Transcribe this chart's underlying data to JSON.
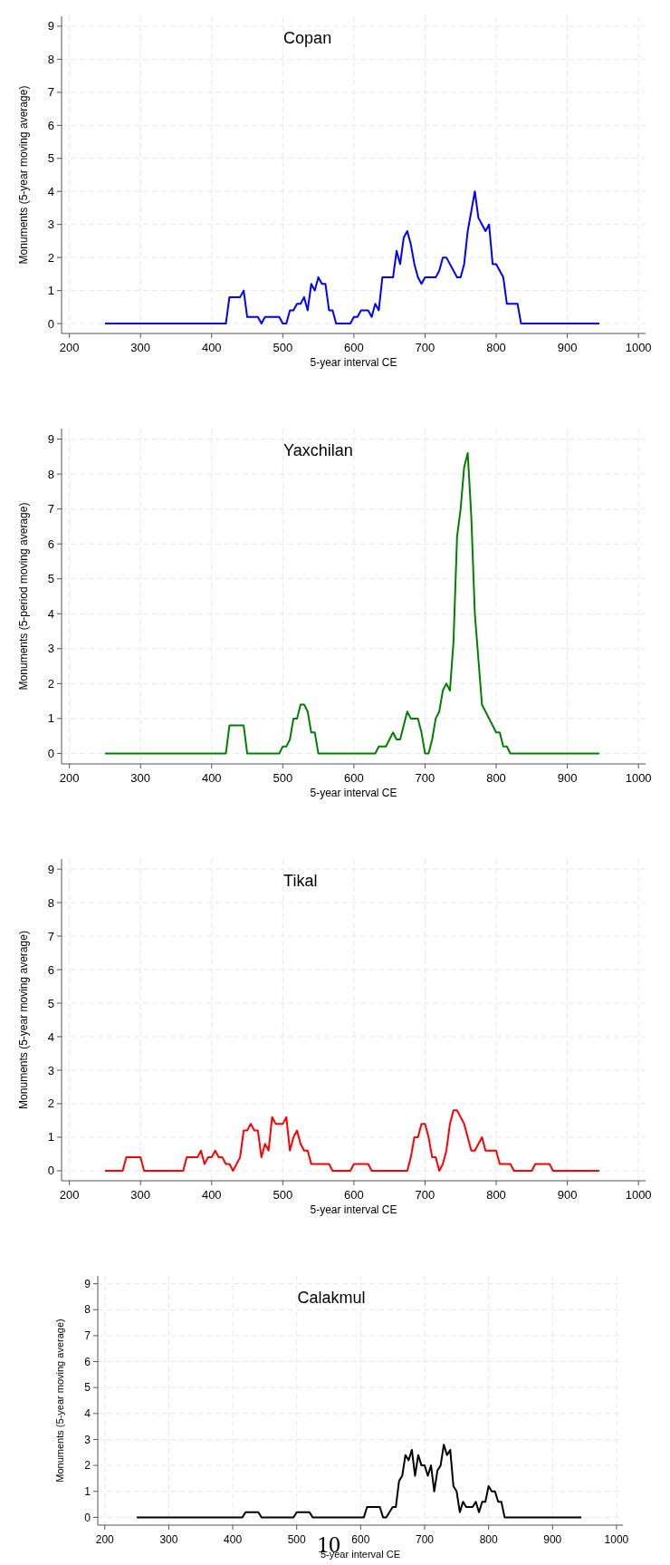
{
  "chart_data": [
    {
      "type": "line",
      "title": "Copan",
      "xlabel": "5-year interval CE",
      "ylabel": "Monuments (5-year moving average)",
      "xlim": [
        189,
        1010
      ],
      "ylim": [
        -0.3,
        9.3
      ],
      "xticks": [
        200,
        300,
        400,
        500,
        600,
        700,
        800,
        900,
        1000
      ],
      "yticks": [
        0,
        1,
        2,
        3,
        4,
        5,
        6,
        7,
        8,
        9
      ],
      "grid": true,
      "marker": "none",
      "line_style": "solid",
      "series": [
        {
          "color": "#0000ff",
          "x": [
            250,
            420,
            425,
            440,
            445,
            450,
            465,
            470,
            475,
            495,
            500,
            505,
            510,
            515,
            520,
            525,
            530,
            535,
            540,
            545,
            550,
            555,
            560,
            565,
            570,
            575,
            595,
            600,
            605,
            610,
            620,
            625,
            630,
            635,
            640,
            655,
            660,
            665,
            670,
            675,
            680,
            685,
            690,
            695,
            700,
            715,
            720,
            725,
            730,
            745,
            750,
            755,
            760,
            765,
            770,
            775,
            785,
            790,
            795,
            800,
            810,
            815,
            830,
            835,
            945
          ],
          "values": [
            0,
            0,
            0.8,
            0.8,
            1,
            0.2,
            0.2,
            0,
            0.2,
            0.2,
            0,
            0,
            0.4,
            0.4,
            0.6,
            0.6,
            0.8,
            0.4,
            1.2,
            1,
            1.4,
            1.2,
            1.2,
            0.4,
            0.4,
            0,
            0,
            0.2,
            0.2,
            0.4,
            0.4,
            0.2,
            0.6,
            0.4,
            1.4,
            1.4,
            2.2,
            1.8,
            2.6,
            2.8,
            2.4,
            1.8,
            1.4,
            1.2,
            1.4,
            1.4,
            1.6,
            2,
            2,
            1.4,
            1.4,
            1.8,
            2.8,
            3.4,
            4,
            3.2,
            2.8,
            3,
            1.8,
            1.8,
            1.4,
            0.6,
            0.6,
            0,
            0
          ]
        }
      ]
    },
    {
      "type": "line",
      "title": "Yaxchilan",
      "xlabel": "5-year interval CE",
      "ylabel": "Monuments (5-period moving average)",
      "xlim": [
        189,
        1010
      ],
      "ylim": [
        -0.3,
        9.3
      ],
      "xticks": [
        200,
        300,
        400,
        500,
        600,
        700,
        800,
        900,
        1000
      ],
      "yticks": [
        0,
        1,
        2,
        3,
        4,
        5,
        6,
        7,
        8,
        9
      ],
      "grid": true,
      "marker": "none",
      "line_style": "solid",
      "series": [
        {
          "color": "#008000",
          "x": [
            250,
            420,
            425,
            445,
            450,
            495,
            500,
            505,
            510,
            515,
            520,
            525,
            530,
            535,
            540,
            545,
            550,
            630,
            635,
            645,
            650,
            655,
            660,
            665,
            670,
            675,
            680,
            690,
            695,
            700,
            705,
            710,
            715,
            720,
            725,
            730,
            735,
            740,
            745,
            750,
            755,
            760,
            765,
            770,
            780,
            800,
            805,
            810,
            815,
            820,
            945
          ],
          "values": [
            0,
            0,
            0.8,
            0.8,
            0,
            0,
            0.2,
            0.2,
            0.4,
            1,
            1,
            1.4,
            1.4,
            1.2,
            0.6,
            0.6,
            0,
            0,
            0.2,
            0.2,
            0.4,
            0.6,
            0.4,
            0.4,
            0.8,
            1.2,
            1,
            1,
            0.6,
            0,
            0,
            0.4,
            1,
            1.2,
            1.8,
            2,
            1.8,
            3.2,
            6.2,
            7,
            8.2,
            8.6,
            6.8,
            4,
            1.4,
            0.6,
            0.6,
            0.2,
            0.2,
            0,
            0
          ]
        }
      ]
    },
    {
      "type": "line",
      "title": "Tikal",
      "xlabel": "5-year interval CE",
      "ylabel": "Monuments (5-year moving average)",
      "xlim": [
        189,
        1010
      ],
      "ylim": [
        -0.3,
        9.3
      ],
      "xticks": [
        200,
        300,
        400,
        500,
        600,
        700,
        800,
        900,
        1000
      ],
      "yticks": [
        0,
        1,
        2,
        3,
        4,
        5,
        6,
        7,
        8,
        9
      ],
      "grid": true,
      "marker": "none",
      "line_style": "solid",
      "series": [
        {
          "color": "#ff0000",
          "x": [
            250,
            275,
            280,
            300,
            305,
            360,
            365,
            380,
            385,
            390,
            395,
            400,
            405,
            410,
            415,
            420,
            425,
            430,
            440,
            445,
            450,
            455,
            460,
            465,
            470,
            475,
            480,
            485,
            490,
            500,
            505,
            510,
            515,
            520,
            525,
            530,
            535,
            540,
            565,
            570,
            595,
            600,
            620,
            625,
            675,
            680,
            685,
            690,
            695,
            700,
            705,
            710,
            715,
            720,
            725,
            730,
            735,
            740,
            745,
            755,
            765,
            770,
            780,
            785,
            800,
            805,
            820,
            825,
            850,
            855,
            875,
            880,
            945
          ],
          "values": [
            0,
            0,
            0.4,
            0.4,
            0,
            0,
            0.4,
            0.4,
            0.6,
            0.2,
            0.4,
            0.4,
            0.6,
            0.4,
            0.4,
            0.2,
            0.2,
            0,
            0.4,
            1.2,
            1.2,
            1.4,
            1.2,
            1.2,
            0.4,
            0.8,
            0.6,
            1.6,
            1.4,
            1.4,
            1.6,
            0.6,
            1,
            1.2,
            0.8,
            0.6,
            0.6,
            0.2,
            0.2,
            0,
            0,
            0.2,
            0.2,
            0,
            0,
            0.4,
            1,
            1,
            1.4,
            1.4,
            1,
            0.4,
            0.4,
            0,
            0.2,
            0.6,
            1.4,
            1.8,
            1.8,
            1.4,
            0.6,
            0.6,
            1,
            0.6,
            0.6,
            0.2,
            0.2,
            0,
            0,
            0.2,
            0.2,
            0,
            0
          ]
        }
      ]
    },
    {
      "type": "line",
      "title": "Calakmul",
      "xlabel": "5-year interval CE",
      "ylabel": "Monuments (5-year moving average)",
      "xlim": [
        189,
        1010
      ],
      "ylim": [
        -0.3,
        9.3
      ],
      "xticks": [
        200,
        300,
        400,
        500,
        600,
        700,
        800,
        900,
        1000
      ],
      "yticks": [
        0,
        1,
        2,
        3,
        4,
        5,
        6,
        7,
        8,
        9
      ],
      "grid": true,
      "marker": "none",
      "line_style": "solid",
      "annotations": [
        "10"
      ],
      "series": [
        {
          "color": "#000000",
          "x": [
            250,
            415,
            420,
            440,
            445,
            495,
            500,
            520,
            525,
            605,
            610,
            630,
            635,
            640,
            650,
            655,
            660,
            665,
            670,
            675,
            680,
            685,
            690,
            695,
            700,
            705,
            710,
            715,
            720,
            725,
            730,
            735,
            740,
            745,
            750,
            755,
            760,
            765,
            775,
            780,
            785,
            790,
            795,
            800,
            805,
            810,
            815,
            820,
            825,
            945
          ],
          "values": [
            0,
            0,
            0.2,
            0.2,
            0,
            0,
            0.2,
            0.2,
            0,
            0,
            0.4,
            0.4,
            0,
            0,
            0.4,
            0.4,
            1.4,
            1.6,
            2.4,
            2.2,
            2.6,
            1.6,
            2.4,
            2,
            2,
            1.6,
            2,
            1,
            1.8,
            2,
            2.8,
            2.4,
            2.6,
            1.2,
            1,
            0.2,
            0.6,
            0.4,
            0.4,
            0.6,
            0.2,
            0.6,
            0.6,
            1.2,
            1,
            1,
            0.6,
            0.6,
            0,
            0
          ]
        }
      ]
    }
  ]
}
